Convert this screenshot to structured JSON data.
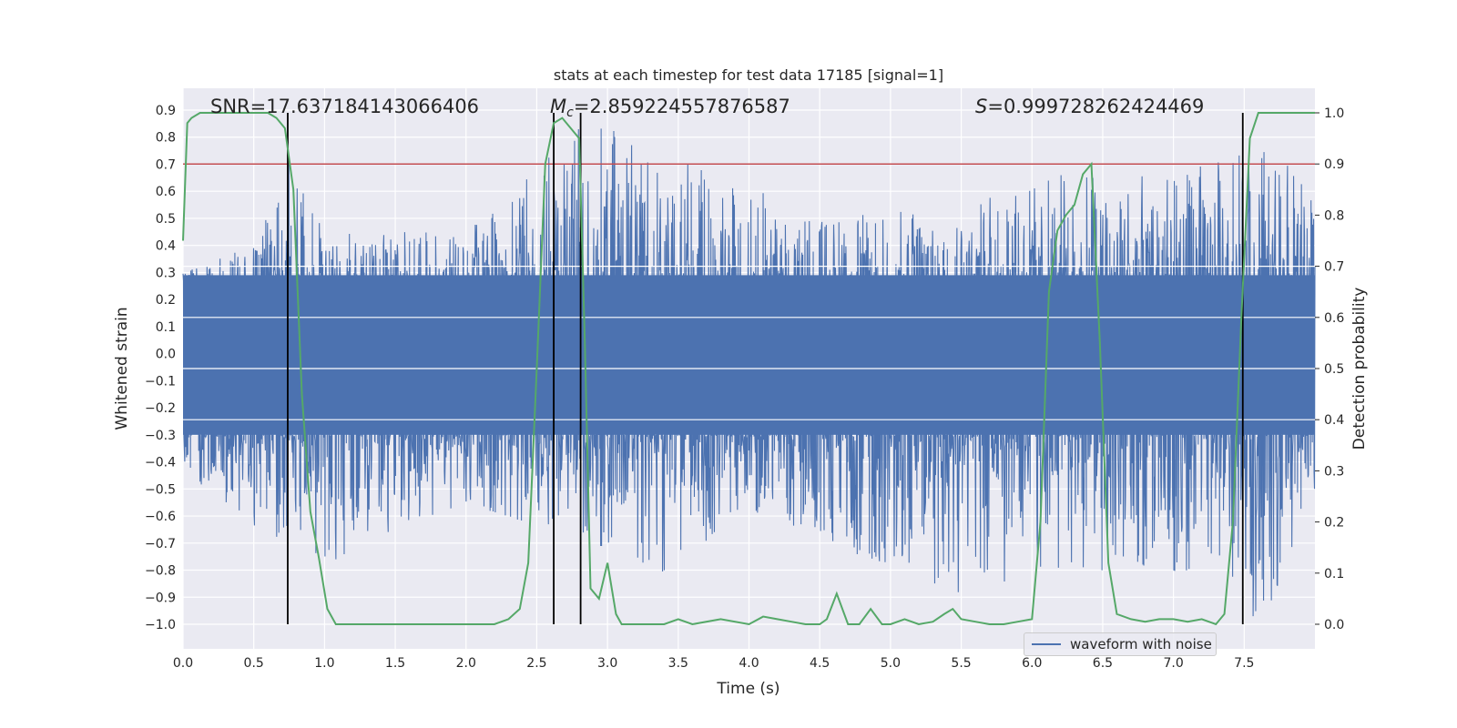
{
  "chart_data": {
    "type": "line",
    "title": "stats at each timestep for test data 17185 [signal=1]",
    "xlabel": "Time (s)",
    "ylabel": "Whitened strain",
    "ylabel_right": "Detection probability",
    "xlim": [
      0.0,
      8.0
    ],
    "ylim": [
      -1.1,
      1.0
    ],
    "ylim_right": [
      -0.05,
      1.05
    ],
    "xticks": [
      "0.0",
      "0.5",
      "1.0",
      "1.5",
      "2.0",
      "2.5",
      "3.0",
      "3.5",
      "4.0",
      "4.5",
      "5.0",
      "5.5",
      "6.0",
      "6.5",
      "7.0",
      "7.5"
    ],
    "yticks": [
      "0.9",
      "0.8",
      "0.7",
      "0.6",
      "0.5",
      "0.4",
      "0.3",
      "0.2",
      "0.1",
      "0.0",
      "−0.1",
      "−0.2",
      "−0.3",
      "−0.4",
      "−0.5",
      "−0.6",
      "−0.7",
      "−0.8",
      "−0.9",
      "−1.0"
    ],
    "yticks_right": [
      "1.0",
      "0.9",
      "0.8",
      "0.7",
      "0.6",
      "0.5",
      "0.4",
      "0.3",
      "0.2",
      "0.1",
      "0.0"
    ],
    "annotations": {
      "snr": "SNR=17.637184143066406",
      "mc_symbol": "M",
      "mc_sub": "c",
      "mc_value": "=2.859224557876587",
      "s_symbol": "S",
      "s_value": "=0.999728262424469"
    },
    "legend": {
      "label": "waveform with noise",
      "placement": "lower-right"
    },
    "threshold": {
      "axis": "right",
      "value": 0.9,
      "color": "#c44e52"
    },
    "vertical_markers": [
      0.74,
      2.62,
      2.81,
      7.49
    ],
    "grid": true,
    "series": [
      {
        "name": "waveform with noise",
        "axis": "left",
        "color": "#4c72b0",
        "envelope_upper": [
          [
            0.0,
            0.3
          ],
          [
            0.5,
            0.4
          ],
          [
            0.74,
            0.75
          ],
          [
            1.0,
            0.45
          ],
          [
            2.0,
            0.45
          ],
          [
            2.9,
            0.88
          ],
          [
            3.5,
            0.75
          ],
          [
            4.5,
            0.5
          ],
          [
            5.5,
            0.55
          ],
          [
            6.4,
            0.7
          ],
          [
            7.0,
            0.65
          ],
          [
            7.6,
            0.8
          ],
          [
            8.0,
            0.6
          ]
        ],
        "envelope_lower": [
          [
            0.0,
            -0.45
          ],
          [
            0.5,
            -0.65
          ],
          [
            1.1,
            -0.78
          ],
          [
            2.0,
            -0.55
          ],
          [
            3.4,
            -0.82
          ],
          [
            4.0,
            -0.6
          ],
          [
            5.5,
            -0.9
          ],
          [
            6.5,
            -0.8
          ],
          [
            7.2,
            -0.85
          ],
          [
            7.65,
            -1.0
          ],
          [
            8.0,
            -0.5
          ]
        ]
      },
      {
        "name": "",
        "axis": "right",
        "color": "#55a868",
        "x": [
          0.0,
          0.03,
          0.06,
          0.12,
          0.2,
          0.3,
          0.4,
          0.5,
          0.6,
          0.66,
          0.72,
          0.78,
          0.84,
          0.9,
          0.96,
          1.02,
          1.08,
          1.14,
          1.2,
          1.3,
          1.5,
          1.8,
          2.0,
          2.2,
          2.3,
          2.38,
          2.44,
          2.5,
          2.56,
          2.62,
          2.68,
          2.74,
          2.8,
          2.84,
          2.88,
          2.94,
          3.0,
          3.06,
          3.1,
          3.16,
          3.3,
          3.4,
          3.5,
          3.6,
          3.8,
          4.0,
          4.1,
          4.2,
          4.3,
          4.4,
          4.5,
          4.55,
          4.62,
          4.7,
          4.78,
          4.86,
          4.94,
          5.0,
          5.1,
          5.2,
          5.3,
          5.38,
          5.44,
          5.5,
          5.6,
          5.7,
          5.8,
          5.9,
          6.0,
          6.06,
          6.12,
          6.18,
          6.24,
          6.3,
          6.36,
          6.42,
          6.48,
          6.54,
          6.6,
          6.7,
          6.8,
          6.9,
          7.0,
          7.1,
          7.2,
          7.3,
          7.36,
          7.42,
          7.48,
          7.54,
          7.6,
          7.66,
          7.8,
          8.0
        ],
        "y": [
          0.75,
          0.98,
          0.99,
          1.0,
          1.0,
          1.0,
          1.0,
          1.0,
          1.0,
          0.99,
          0.97,
          0.85,
          0.45,
          0.22,
          0.13,
          0.03,
          0.0,
          0.0,
          0.0,
          0.0,
          0.0,
          0.0,
          0.0,
          0.0,
          0.01,
          0.03,
          0.12,
          0.5,
          0.9,
          0.98,
          0.99,
          0.97,
          0.95,
          0.55,
          0.07,
          0.05,
          0.12,
          0.02,
          0.0,
          0.0,
          0.0,
          0.0,
          0.01,
          0.0,
          0.01,
          0.0,
          0.015,
          0.01,
          0.005,
          0.0,
          0.0,
          0.01,
          0.06,
          0.0,
          0.0,
          0.03,
          0.0,
          0.0,
          0.01,
          0.0,
          0.005,
          0.02,
          0.03,
          0.01,
          0.005,
          0.0,
          0.0,
          0.005,
          0.01,
          0.2,
          0.65,
          0.77,
          0.8,
          0.82,
          0.88,
          0.9,
          0.55,
          0.12,
          0.02,
          0.01,
          0.005,
          0.01,
          0.01,
          0.005,
          0.01,
          0.0,
          0.02,
          0.2,
          0.6,
          0.95,
          1.0,
          1.0,
          1.0,
          1.0
        ]
      }
    ]
  }
}
